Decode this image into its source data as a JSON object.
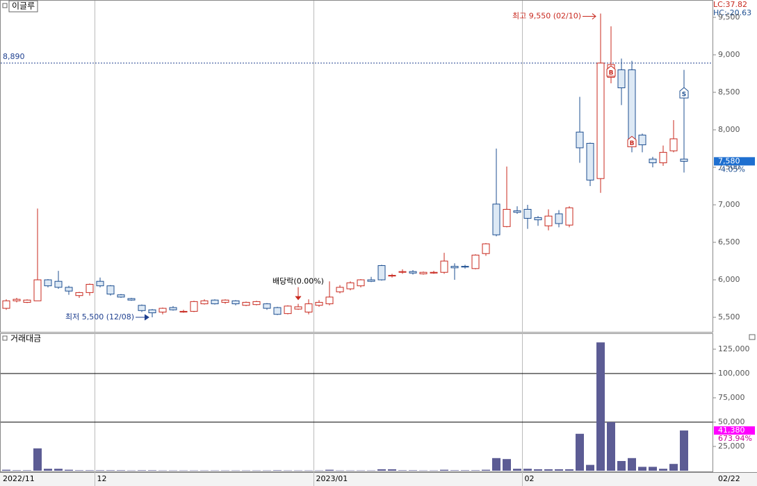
{
  "chart_data": [
    {
      "type": "candlestick",
      "title": "이글루",
      "indicators": [
        "LC:37.82",
        "HC:-20.63"
      ],
      "categories": [
        "2022/11",
        null,
        null,
        null,
        null,
        null,
        null,
        null,
        null,
        "12",
        null,
        null,
        null,
        null,
        null,
        null,
        null,
        null,
        null,
        null,
        null,
        null,
        null,
        null,
        null,
        null,
        null,
        null,
        null,
        null,
        "2023/01",
        null,
        null,
        null,
        null,
        null,
        null,
        null,
        null,
        null,
        null,
        null,
        null,
        null,
        null,
        null,
        null,
        null,
        null,
        null,
        "02",
        null,
        null,
        null,
        null,
        null,
        null,
        null,
        null,
        null,
        null,
        null,
        null,
        null,
        null,
        null
      ],
      "x_end_label": "02/22",
      "open": [
        5620,
        5720,
        5700,
        5720,
        6000,
        5980,
        5900,
        5790,
        5830,
        5980,
        5920,
        5800,
        5750,
        5660,
        5600,
        5570,
        5630,
        5570,
        5580,
        5680,
        5730,
        5700,
        5720,
        5660,
        5670,
        5680,
        5630,
        5550,
        5610,
        5570,
        5660,
        5680,
        5840,
        5880,
        5920,
        6000,
        6190,
        6050,
        6100,
        6110,
        6080,
        6090,
        6100,
        6180,
        6180,
        6150,
        6350,
        7010,
        6710,
        6920,
        6940,
        6830,
        6720,
        6880,
        6730,
        7970,
        7820,
        7350,
        8700,
        8800,
        8800,
        7930,
        7610,
        7560,
        7720,
        7610
      ],
      "high": [
        5740,
        5760,
        5740,
        6950,
        6010,
        6120,
        5920,
        5840,
        5950,
        6030,
        5930,
        5810,
        5760,
        5670,
        5610,
        5630,
        5650,
        5600,
        5720,
        5740,
        5740,
        5740,
        5730,
        5710,
        5720,
        5690,
        5640,
        5660,
        5680,
        5740,
        5730,
        5980,
        5930,
        5980,
        6010,
        6040,
        6200,
        6080,
        6140,
        6130,
        6110,
        6120,
        6360,
        6220,
        6200,
        6340,
        6490,
        7750,
        7510,
        6980,
        7000,
        6850,
        6940,
        6930,
        6980,
        8440,
        7830,
        9550,
        9380,
        8950,
        8920,
        7950,
        7640,
        7790,
        8130,
        8800
      ],
      "low": [
        5600,
        5700,
        5690,
        5720,
        5900,
        5880,
        5800,
        5760,
        5790,
        5900,
        5790,
        5760,
        5720,
        5570,
        5500,
        5540,
        5590,
        5560,
        5570,
        5670,
        5670,
        5680,
        5660,
        5650,
        5660,
        5600,
        5530,
        5540,
        5600,
        5540,
        5640,
        5660,
        5820,
        5860,
        5900,
        5970,
        5990,
        6030,
        6080,
        6070,
        6070,
        6080,
        6080,
        6000,
        6150,
        6140,
        6320,
        6580,
        6700,
        6880,
        6680,
        6720,
        6660,
        6700,
        6700,
        7560,
        7250,
        7160,
        8620,
        8330,
        7700,
        7700,
        7500,
        7520,
        7700,
        7430
      ],
      "close": [
        5720,
        5740,
        5730,
        6000,
        5920,
        5900,
        5850,
        5830,
        5940,
        5920,
        5810,
        5770,
        5730,
        5590,
        5560,
        5620,
        5600,
        5580,
        5710,
        5720,
        5680,
        5730,
        5680,
        5700,
        5710,
        5620,
        5540,
        5650,
        5640,
        5680,
        5700,
        5770,
        5900,
        5960,
        6000,
        5980,
        6000,
        6060,
        6110,
        6090,
        6100,
        6100,
        6250,
        6160,
        6170,
        6330,
        6480,
        6600,
        6940,
        6900,
        6820,
        6800,
        6850,
        6750,
        6960,
        7760,
        7330,
        8890,
        8870,
        8560,
        7820,
        7800,
        7560,
        7700,
        7880,
        7580
      ],
      "up_color": "#c8281e",
      "down_color": "#1e4f91",
      "ylim": [
        5306,
        9731
      ],
      "yticks": [
        {
          "value": 5500,
          "label": "5,500"
        },
        {
          "value": 6000,
          "label": "6,000"
        },
        {
          "value": 6500,
          "label": "6,500"
        },
        {
          "value": 7000,
          "label": "7,000"
        },
        {
          "value": 7500,
          "label": "7,500"
        },
        {
          "value": 8000,
          "label": "8,000"
        },
        {
          "value": 8500,
          "label": "8,500"
        },
        {
          "value": 9000,
          "label": "9,000"
        },
        {
          "value": 9500,
          "label": "9,500"
        }
      ],
      "reference_line": {
        "value": 8890,
        "label": "8,890"
      },
      "high_label": "최고 9,550 (02/10)",
      "low_label": "최저 5,500 (12/08)",
      "annotations": [
        {
          "text": "배당락(0.00%)",
          "index": 28
        }
      ],
      "markers": [
        {
          "label": "B",
          "index": 58,
          "value": 8770
        },
        {
          "label": "B",
          "index": 60,
          "value": 7830
        },
        {
          "label": "S",
          "index": 65,
          "value": 8480
        }
      ],
      "last_price": {
        "value": 7580,
        "label": "7,580",
        "change": "-4.05%"
      }
    },
    {
      "type": "bar",
      "title": "거래대금",
      "color": "#5c5c94",
      "values": [
        1000,
        500,
        500,
        23000,
        2000,
        2000,
        1000,
        500,
        500,
        500,
        500,
        500,
        300,
        500,
        500,
        300,
        300,
        300,
        300,
        300,
        300,
        300,
        300,
        300,
        300,
        300,
        500,
        300,
        300,
        300,
        300,
        1000,
        300,
        300,
        300,
        300,
        1500,
        1500,
        500,
        500,
        300,
        300,
        1000,
        500,
        500,
        500,
        1000,
        13000,
        12000,
        2000,
        2000,
        1500,
        1500,
        1500,
        1500,
        38000,
        6000,
        132000,
        50000,
        10000,
        13000,
        4000,
        4000,
        2000,
        7000,
        41380
      ],
      "ylim": [
        0,
        141400
      ],
      "yticks": [
        {
          "value": 25000,
          "label": "25,000"
        },
        {
          "value": 50000,
          "label": "50,000"
        },
        {
          "value": 75000,
          "label": "75,000"
        },
        {
          "value": 100000,
          "label": "100,000"
        },
        {
          "value": 125000,
          "label": "125,000"
        }
      ],
      "levels": [
        50000,
        100000
      ],
      "last_value": {
        "value": 41380,
        "label": "41,380",
        "change": "673.94%"
      }
    }
  ]
}
